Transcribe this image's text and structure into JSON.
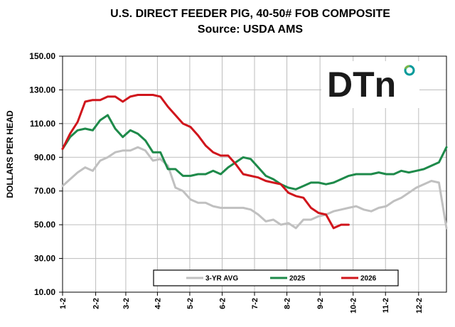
{
  "logo": {
    "text": "DTn",
    "name": "dtn-logo",
    "colors": [
      "#1a1a1a",
      "#009a9a",
      "#7ab648"
    ]
  },
  "chart_data": {
    "type": "line",
    "title": "U.S. DIRECT FEEDER PIG, 40-50# FOB COMPOSITE",
    "subtitle": "Source:  USDA AMS",
    "xlabel": "",
    "ylabel": "DOLLARS PER HEAD",
    "ylim": [
      10,
      150
    ],
    "yticks": [
      10,
      30,
      50,
      70,
      90,
      110,
      130,
      150
    ],
    "ytick_labels": [
      "10.00",
      "30.00",
      "50.00",
      "70.00",
      "90.00",
      "110.00",
      "130.00",
      "150.00"
    ],
    "xlim": [
      0,
      51
    ],
    "xticks": [
      0,
      4.4,
      8.4,
      12.6,
      16.9,
      21.2,
      25.5,
      29.8,
      34.2,
      38.6,
      42.9,
      47.3
    ],
    "xtick_labels": [
      "1-2",
      "2-2",
      "3-2",
      "4-2",
      "5-2",
      "6-2",
      "7-2",
      "8-2",
      "9-2",
      "10-2",
      "11-2",
      "12-2"
    ],
    "grid": true,
    "legend": "bottom",
    "series": [
      {
        "name": "3-YR AVG",
        "color": "#c0c0c0",
        "x": [
          0,
          1,
          2,
          3,
          4,
          5,
          6,
          7,
          8,
          9,
          10,
          11,
          12,
          13,
          14,
          15,
          16,
          17,
          18,
          19,
          20,
          21,
          22,
          23,
          24,
          25,
          26,
          27,
          28,
          29,
          30,
          31,
          32,
          33,
          34,
          35,
          36,
          37,
          38,
          39,
          40,
          41,
          42,
          43,
          44,
          45,
          46,
          47,
          48,
          49,
          50,
          51
        ],
        "values": [
          73,
          77,
          81,
          84,
          82,
          88,
          90,
          93,
          94,
          94,
          96,
          94,
          88,
          89,
          85,
          72,
          70,
          65,
          63,
          63,
          61,
          60,
          60,
          60,
          60,
          59,
          56,
          52,
          53,
          50,
          51,
          48,
          53,
          53,
          55,
          56,
          58,
          59,
          60,
          61,
          59,
          58,
          60,
          61,
          64,
          66,
          69,
          72,
          74,
          76,
          75,
          48
        ]
      },
      {
        "name": "2025",
        "color": "#1e8a4a",
        "x": [
          0,
          1,
          2,
          3,
          4,
          5,
          6,
          7,
          8,
          9,
          10,
          11,
          12,
          13,
          14,
          15,
          16,
          17,
          18,
          19,
          20,
          21,
          22,
          23,
          24,
          25,
          26,
          27,
          28,
          29,
          30,
          31,
          32,
          33,
          34,
          35,
          36,
          37,
          38,
          39,
          40,
          41,
          42,
          43,
          44,
          45,
          46,
          47,
          48,
          49,
          50,
          51
        ],
        "values": [
          95,
          102,
          106,
          107,
          106,
          112,
          115,
          107,
          102,
          106,
          104,
          100,
          93,
          93,
          83,
          83,
          79,
          79,
          80,
          80,
          82,
          80,
          84,
          87,
          90,
          89,
          84,
          79,
          77,
          74,
          72,
          71,
          73,
          75,
          75,
          74,
          75,
          77,
          79,
          80,
          80,
          80,
          81,
          80,
          80,
          82,
          81,
          82,
          83,
          85,
          87,
          96
        ]
      },
      {
        "name": "2026",
        "color": "#d0151c",
        "x": [
          0,
          1,
          2,
          3,
          4,
          5,
          6,
          7,
          8,
          9,
          10,
          11,
          12,
          13,
          14,
          15,
          16,
          17,
          18,
          19,
          20,
          21,
          22,
          23,
          24,
          25,
          26,
          27,
          28,
          29,
          30,
          31,
          32,
          33,
          34,
          35,
          36,
          37,
          38
        ],
        "values": [
          95,
          104,
          111,
          123,
          124,
          124,
          126,
          126,
          123,
          126,
          127,
          127,
          127,
          126,
          120,
          115,
          110,
          108,
          103,
          97,
          93,
          91,
          91,
          86,
          80,
          79,
          78,
          76,
          75,
          74,
          69,
          67,
          66,
          60,
          57,
          56,
          48,
          50,
          50
        ]
      }
    ]
  }
}
